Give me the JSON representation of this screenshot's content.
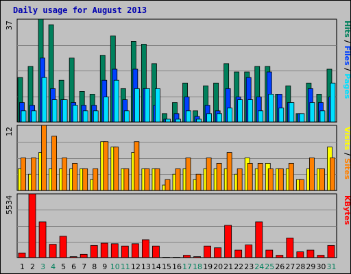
{
  "title": "Daily usage for August 2013",
  "colors": {
    "hits": "#00805c",
    "files": "#0040ff",
    "pages": "#00e0ff",
    "visits": "#ffff00",
    "sites": "#ff8000",
    "kbytes": "#ff0000",
    "weekend_label": "#00805c",
    "weekday_label": "#000000"
  },
  "chart_data": [
    {
      "type": "bar",
      "name": "hits-files-pages",
      "ylim_label": "37",
      "ymax": 37,
      "legend": [
        "Pages",
        "Files",
        "Hits"
      ],
      "categories": [
        "1",
        "2",
        "3",
        "4",
        "5",
        "6",
        "7",
        "8",
        "9",
        "10",
        "11",
        "12",
        "13",
        "14",
        "15",
        "16",
        "17",
        "18",
        "19",
        "20",
        "21",
        "22",
        "23",
        "24",
        "25",
        "26",
        "27",
        "28",
        "29",
        "30",
        "31"
      ],
      "weekend_days": [
        3,
        4,
        10,
        11,
        17,
        18,
        24,
        25,
        31
      ],
      "series": [
        {
          "name": "Hits",
          "values": [
            16,
            20,
            37,
            35,
            15,
            23,
            11,
            10,
            24,
            31,
            12,
            29,
            28,
            21,
            3,
            7,
            14,
            4,
            13,
            14,
            21,
            18,
            18,
            20,
            20,
            10,
            13,
            3,
            14,
            10,
            19
          ]
        },
        {
          "name": "Files",
          "values": [
            7,
            6,
            23,
            12,
            8,
            7,
            6,
            6,
            15,
            19,
            8,
            19,
            12,
            6,
            1,
            3,
            9,
            2,
            6,
            4,
            12,
            9,
            16,
            9,
            18,
            10,
            7,
            3,
            12,
            7,
            9
          ]
        },
        {
          "name": "Pages",
          "values": [
            4,
            4,
            16,
            8,
            8,
            6,
            4,
            4,
            9,
            15,
            4,
            12,
            12,
            12,
            1,
            1,
            4,
            1,
            3,
            3,
            5,
            8,
            8,
            4,
            10,
            5,
            7,
            3,
            7,
            4,
            14
          ]
        }
      ]
    },
    {
      "type": "bar",
      "name": "visits-sites",
      "ylim_label": "12",
      "ymax": 12,
      "legend": [
        "Sites",
        "Visits"
      ],
      "categories": [
        "1",
        "2",
        "3",
        "4",
        "5",
        "6",
        "7",
        "8",
        "9",
        "10",
        "11",
        "12",
        "13",
        "14",
        "15",
        "16",
        "17",
        "18",
        "19",
        "20",
        "21",
        "22",
        "23",
        "24",
        "25",
        "26",
        "27",
        "28",
        "29",
        "30",
        "31"
      ],
      "series": [
        {
          "name": "Visits",
          "values": [
            4,
            3,
            7,
            4,
            4,
            4,
            4,
            2,
            9,
            8,
            4,
            7,
            4,
            4,
            1,
            3,
            4,
            2,
            4,
            4,
            4,
            3,
            6,
            4,
            5,
            4,
            4,
            2,
            4,
            4,
            8
          ]
        },
        {
          "name": "Sites",
          "values": [
            6,
            6,
            12,
            10,
            6,
            5,
            4,
            4,
            9,
            8,
            4,
            9,
            4,
            4,
            2,
            4,
            6,
            3,
            6,
            5,
            7,
            4,
            5,
            5,
            4,
            4,
            5,
            2,
            6,
            4,
            6
          ]
        }
      ]
    },
    {
      "type": "bar",
      "name": "kbytes",
      "ylim_label": "5534",
      "ymax": 5534,
      "legend": [
        "KBytes"
      ],
      "categories": [
        "1",
        "2",
        "3",
        "4",
        "5",
        "6",
        "7",
        "8",
        "9",
        "10",
        "11",
        "12",
        "13",
        "14",
        "15",
        "16",
        "17",
        "18",
        "19",
        "20",
        "21",
        "22",
        "23",
        "24",
        "25",
        "26",
        "27",
        "28",
        "29",
        "30",
        "31"
      ],
      "series": [
        {
          "name": "KBytes",
          "values": [
            400,
            5534,
            3100,
            1150,
            1850,
            80,
            280,
            1050,
            1250,
            1200,
            1000,
            1200,
            1550,
            1000,
            30,
            30,
            200,
            80,
            1000,
            850,
            2800,
            650,
            1100,
            3100,
            650,
            200,
            1700,
            500,
            650,
            200,
            1050
          ]
        }
      ]
    }
  ]
}
